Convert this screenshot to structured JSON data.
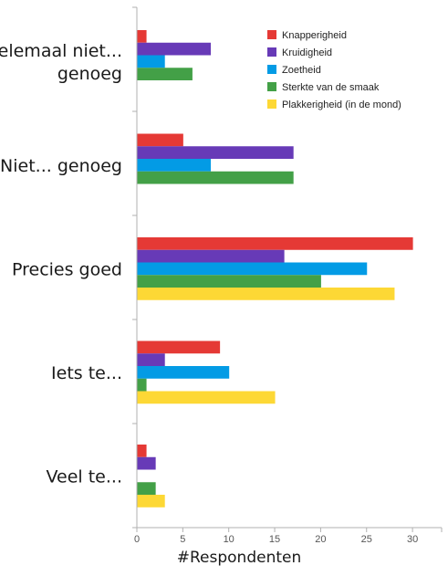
{
  "chart_data": {
    "type": "bar",
    "orientation": "horizontal",
    "categories": [
      [
        "Helemaal niet...",
        "genoeg"
      ],
      [
        "Niet... genoeg"
      ],
      [
        "Precies goed"
      ],
      [
        "Iets te..."
      ],
      [
        "Veel te..."
      ]
    ],
    "series": [
      {
        "name": "Knapperigheid",
        "color": "#e53935",
        "values": [
          1,
          5,
          30,
          9,
          1
        ]
      },
      {
        "name": "Kruidigheid",
        "color": "#673ab7",
        "values": [
          8,
          17,
          16,
          3,
          2
        ]
      },
      {
        "name": "Zoetheid",
        "color": "#039be5",
        "values": [
          3,
          8,
          25,
          10,
          0
        ]
      },
      {
        "name": "Sterkte van de smaak",
        "color": "#43a047",
        "values": [
          6,
          17,
          20,
          1,
          2
        ]
      },
      {
        "name": "Plakkerigheid (in de mond)",
        "color": "#fdd835",
        "values": [
          0,
          0,
          28,
          15,
          3
        ]
      }
    ],
    "xlabel": "#Respondenten",
    "ylabel": "",
    "xlim": [
      0,
      33
    ],
    "xticks": [
      0,
      5,
      10,
      15,
      20,
      25,
      30
    ],
    "grid": false,
    "legend_position": "top-right"
  }
}
